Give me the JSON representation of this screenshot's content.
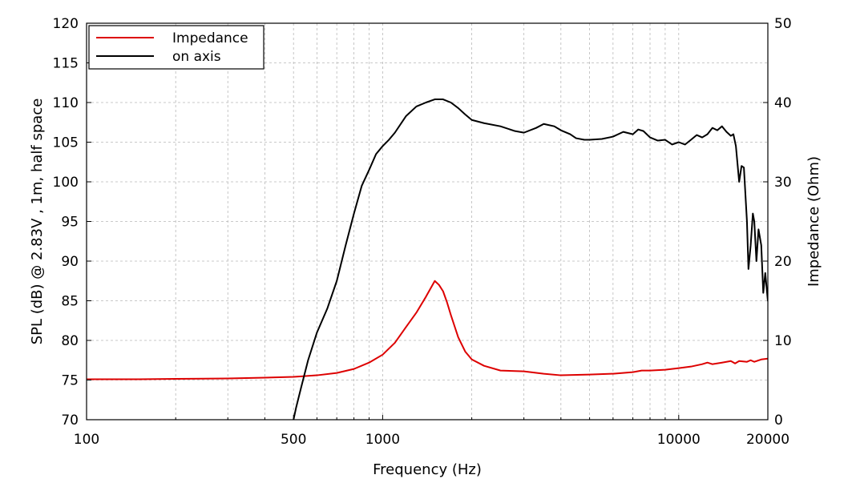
{
  "chart_data": {
    "type": "line",
    "xlabel": "Frequency (Hz)",
    "ylabel_left": "SPL (dB) @ 2.83V , 1m, half space",
    "ylabel_right": "Impedance (Ohm)",
    "x_scale": "log",
    "xlim": [
      100,
      20000
    ],
    "ylim_left": [
      70,
      120
    ],
    "ylim_right": [
      0,
      50
    ],
    "x_ticks": [
      {
        "value": 100,
        "label": "100"
      },
      {
        "value": 500,
        "label": "500"
      },
      {
        "value": 1000,
        "label": "1000"
      },
      {
        "value": 10000,
        "label": "10000"
      },
      {
        "value": 20000,
        "label": "20000"
      }
    ],
    "x_minor_gridlines": [
      200,
      300,
      400,
      600,
      700,
      800,
      900,
      2000,
      3000,
      4000,
      5000,
      6000,
      7000,
      8000,
      9000
    ],
    "y_left_ticks": [
      "70",
      "75",
      "80",
      "85",
      "90",
      "95",
      "100",
      "105",
      "110",
      "115",
      "120"
    ],
    "y_right_ticks": [
      "0",
      "10",
      "20",
      "30",
      "40",
      "50"
    ],
    "grid": true,
    "legend_position": "top-left",
    "series": [
      {
        "name": "Impedance",
        "color": "#dd0000",
        "axis": "right",
        "x": [
          100,
          150,
          200,
          300,
          400,
          500,
          600,
          700,
          800,
          900,
          1000,
          1100,
          1200,
          1300,
          1400,
          1500,
          1550,
          1600,
          1650,
          1700,
          1800,
          1900,
          2000,
          2200,
          2500,
          3000,
          3500,
          4000,
          5000,
          6000,
          7000,
          7500,
          8000,
          9000,
          10000,
          11000,
          12000,
          12500,
          13000,
          14000,
          15000,
          15500,
          16000,
          17000,
          17500,
          18000,
          19000,
          20000
        ],
        "y": [
          5.1,
          5.1,
          5.15,
          5.2,
          5.3,
          5.4,
          5.6,
          5.9,
          6.4,
          7.2,
          8.2,
          9.7,
          11.7,
          13.5,
          15.5,
          17.5,
          17.0,
          16.2,
          14.8,
          13.2,
          10.4,
          8.6,
          7.6,
          6.8,
          6.2,
          6.1,
          5.8,
          5.6,
          5.7,
          5.8,
          6.0,
          6.2,
          6.2,
          6.3,
          6.5,
          6.7,
          7.0,
          7.2,
          7.0,
          7.2,
          7.4,
          7.1,
          7.4,
          7.3,
          7.5,
          7.3,
          7.6,
          7.7
        ]
      },
      {
        "name": "on axis",
        "color": "#000000",
        "axis": "left",
        "x": [
          500,
          510,
          530,
          560,
          600,
          650,
          700,
          750,
          800,
          850,
          900,
          950,
          1000,
          1050,
          1100,
          1200,
          1300,
          1400,
          1500,
          1600,
          1700,
          1800,
          1900,
          2000,
          2200,
          2500,
          2800,
          3000,
          3300,
          3500,
          3800,
          4000,
          4300,
          4500,
          4800,
          5000,
          5500,
          6000,
          6500,
          7000,
          7300,
          7600,
          8000,
          8500,
          9000,
          9500,
          10000,
          10500,
          11000,
          11500,
          12000,
          12500,
          13000,
          13500,
          14000,
          14500,
          15000,
          15300,
          15600,
          16000,
          16300,
          16600,
          17000,
          17200,
          17500,
          17800,
          18000,
          18300,
          18600,
          19000,
          19300,
          19600,
          20000
        ],
        "y": [
          70.0,
          71.5,
          74.0,
          77.5,
          81.0,
          84.0,
          87.5,
          92.0,
          96.0,
          99.5,
          101.5,
          103.5,
          104.5,
          105.3,
          106.2,
          108.3,
          109.5,
          110.0,
          110.4,
          110.4,
          110.0,
          109.3,
          108.5,
          107.8,
          107.4,
          107.0,
          106.4,
          106.2,
          106.8,
          107.3,
          107.0,
          106.5,
          106.0,
          105.5,
          105.3,
          105.3,
          105.4,
          105.7,
          106.3,
          106.0,
          106.6,
          106.4,
          105.6,
          105.2,
          105.3,
          104.7,
          105.0,
          104.7,
          105.3,
          105.9,
          105.6,
          106.0,
          106.8,
          106.5,
          107.0,
          106.3,
          105.8,
          106.0,
          104.5,
          100.0,
          102.0,
          101.8,
          95.0,
          89.0,
          92.0,
          96.0,
          95.0,
          90.0,
          94.0,
          92.0,
          86.0,
          88.5,
          85.0
        ]
      }
    ]
  }
}
